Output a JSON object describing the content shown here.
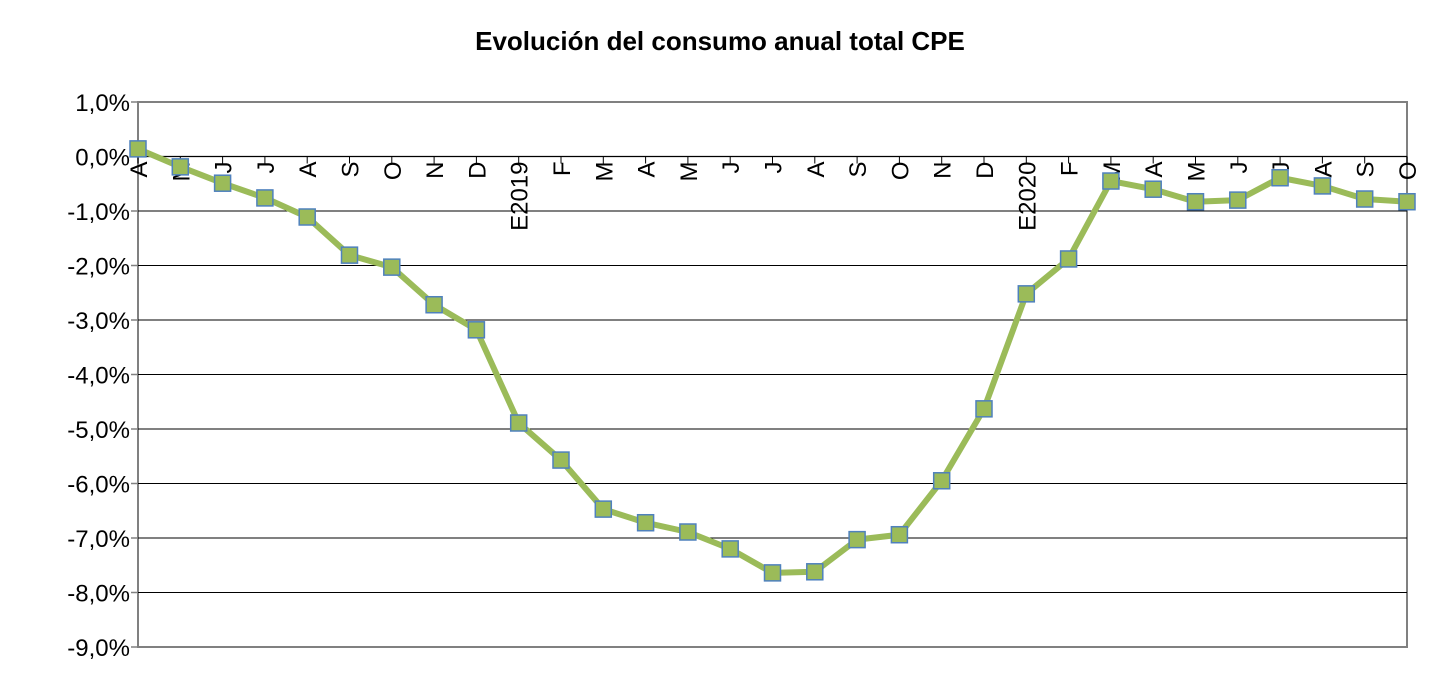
{
  "chart_data": {
    "type": "line",
    "title": "Evolución del consumo anual total CPE",
    "xlabel": "",
    "ylabel": "",
    "categories": [
      "A",
      "M",
      "J",
      "J",
      "A",
      "S",
      "O",
      "N",
      "D",
      "E2019",
      "F",
      "M",
      "A",
      "M",
      "J",
      "J",
      "A",
      "S",
      "O",
      "N",
      "D",
      "E2020",
      "F",
      "M",
      "A",
      "M",
      "J",
      "J",
      "A",
      "S",
      "O"
    ],
    "series": [
      {
        "values": [
          0.14,
          -0.19,
          -0.49,
          -0.76,
          -1.11,
          -1.81,
          -2.03,
          -2.72,
          -3.18,
          -4.89,
          -5.57,
          -6.47,
          -6.72,
          -6.89,
          -7.2,
          -7.64,
          -7.62,
          -7.03,
          -6.94,
          -5.95,
          -4.63,
          -2.52,
          -1.88,
          -0.45,
          -0.6,
          -0.83,
          -0.8,
          -0.39,
          -0.54,
          -0.78,
          -0.83
        ],
        "color": "#9BBB59",
        "marker_color": "#9BBB59",
        "marker_edge_color": "#4F81BD"
      }
    ],
    "ylim": [
      -9,
      1
    ],
    "yticks": [
      1,
      0,
      -1,
      -2,
      -3,
      -4,
      -5,
      -6,
      -7,
      -8,
      -9
    ],
    "ytick_labels": [
      "1,0%",
      "0,0%",
      "-1,0%",
      "-2,0%",
      "-3,0%",
      "-4,0%",
      "-5,0%",
      "-6,0%",
      "-7,0%",
      "-8,0%",
      "-9,0%"
    ],
    "grid": true,
    "legend": "none"
  }
}
